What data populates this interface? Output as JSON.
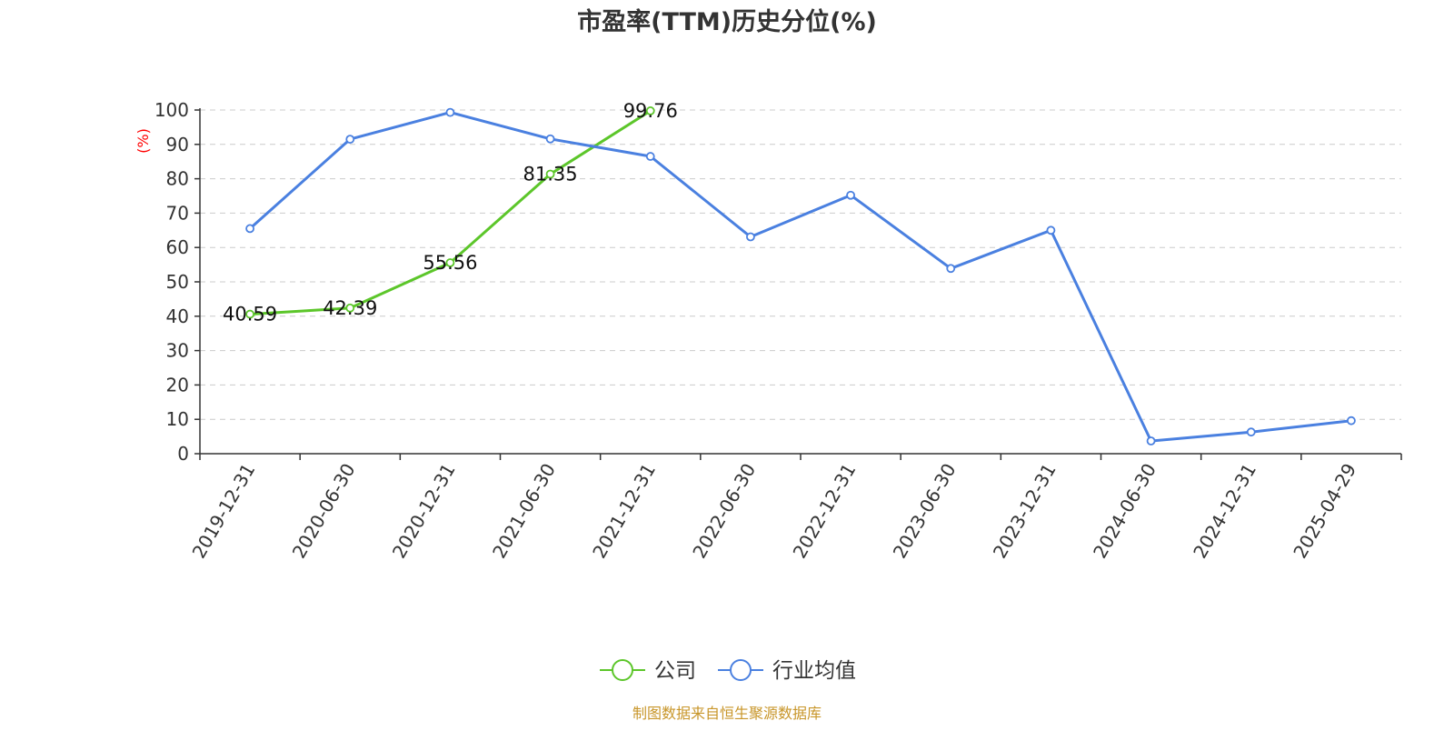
{
  "chart_data": {
    "type": "line",
    "title": "市盈率(TTM)历史分位(%)",
    "ylabel": "(%)",
    "xlabel": "",
    "ylim": [
      0,
      100
    ],
    "yticks": [
      0,
      10,
      20,
      30,
      40,
      50,
      60,
      70,
      80,
      90,
      100
    ],
    "grid": true,
    "legend_position": "bottom-center",
    "categories": [
      "2019-12-31",
      "2020-06-30",
      "2020-12-31",
      "2021-06-30",
      "2021-12-31",
      "2022-06-30",
      "2022-12-31",
      "2023-06-30",
      "2023-12-31",
      "2024-06-30",
      "2024-12-31",
      "2025-04-29"
    ],
    "series": [
      {
        "name": "公司",
        "color": "#5cc62a",
        "show_labels": true,
        "values": [
          40.59,
          42.39,
          55.56,
          81.35,
          99.76,
          null,
          null,
          null,
          null,
          null,
          null,
          null
        ]
      },
      {
        "name": "行业均值",
        "color": "#4a80e0",
        "show_labels": false,
        "values": [
          65.5,
          91.5,
          99.3,
          91.6,
          86.5,
          63.1,
          75.2,
          53.9,
          65.0,
          3.7,
          6.3,
          9.6
        ]
      }
    ]
  },
  "footer": {
    "source": "制图数据来自恒生聚源数据库"
  },
  "colors": {
    "axis": "#333333",
    "grid": "#cccccc",
    "ylabel": "#ff0000",
    "footer": "#c8962a",
    "title": "#333333"
  }
}
